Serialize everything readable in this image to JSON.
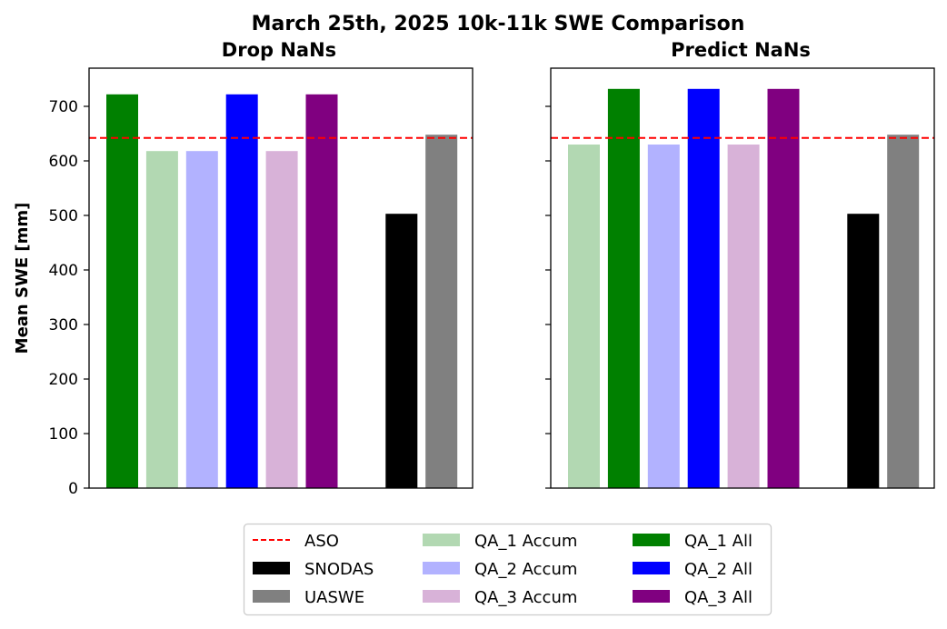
{
  "figure_title": "March 25th, 2025 10k-11k SWE Comparison",
  "chart_data": [
    {
      "type": "bar",
      "title": "Drop NaNs",
      "ylabel": "Mean SWE [mm]",
      "xlabel": "",
      "ylim": [
        0,
        770
      ],
      "yticks": [
        0,
        100,
        200,
        300,
        400,
        500,
        600,
        700
      ],
      "grid": false,
      "reference_line": {
        "name": "ASO",
        "value": 642,
        "color": "#ff0000",
        "style": "dashed"
      },
      "bars": [
        {
          "series": "QA_1 All",
          "value": 722
        },
        {
          "series": "QA_1 Accum",
          "value": 618
        },
        {
          "series": "QA_2 Accum",
          "value": 618
        },
        {
          "series": "QA_2 All",
          "value": 722
        },
        {
          "series": "QA_3 Accum",
          "value": 618
        },
        {
          "series": "QA_3 All",
          "value": 722
        },
        {
          "series": "SNODAS",
          "value": 503
        },
        {
          "series": "UASWE",
          "value": 648
        }
      ]
    },
    {
      "type": "bar",
      "title": "Predict NaNs",
      "ylabel": "",
      "xlabel": "",
      "ylim": [
        0,
        770
      ],
      "yticks": [
        0,
        100,
        200,
        300,
        400,
        500,
        600,
        700
      ],
      "grid": false,
      "reference_line": {
        "name": "ASO",
        "value": 642,
        "color": "#ff0000",
        "style": "dashed"
      },
      "bars": [
        {
          "series": "QA_1 Accum",
          "value": 630
        },
        {
          "series": "QA_1 All",
          "value": 732
        },
        {
          "series": "QA_2 Accum",
          "value": 630
        },
        {
          "series": "QA_2 All",
          "value": 732
        },
        {
          "series": "QA_3 Accum",
          "value": 630
        },
        {
          "series": "QA_3 All",
          "value": 732
        },
        {
          "series": "SNODAS",
          "value": 503
        },
        {
          "series": "UASWE",
          "value": 648
        }
      ]
    }
  ],
  "legend": {
    "placement": "bottom-center",
    "entries": [
      {
        "label": "ASO",
        "color": "#ff0000",
        "kind": "dashed-line"
      },
      {
        "label": "SNODAS",
        "color": "#000000",
        "kind": "patch"
      },
      {
        "label": "UASWE",
        "color": "#808080",
        "kind": "patch"
      },
      {
        "label": "QA_1 Accum",
        "color": "#b2d8b2",
        "kind": "patch"
      },
      {
        "label": "QA_2 Accum",
        "color": "#b2b2ff",
        "kind": "patch"
      },
      {
        "label": "QA_3 Accum",
        "color": "#d8b2d8",
        "kind": "patch"
      },
      {
        "label": "QA_1 All",
        "color": "#008000",
        "kind": "patch"
      },
      {
        "label": "QA_2 All",
        "color": "#0000ff",
        "kind": "patch"
      },
      {
        "label": "QA_3 All",
        "color": "#800080",
        "kind": "patch"
      }
    ]
  }
}
